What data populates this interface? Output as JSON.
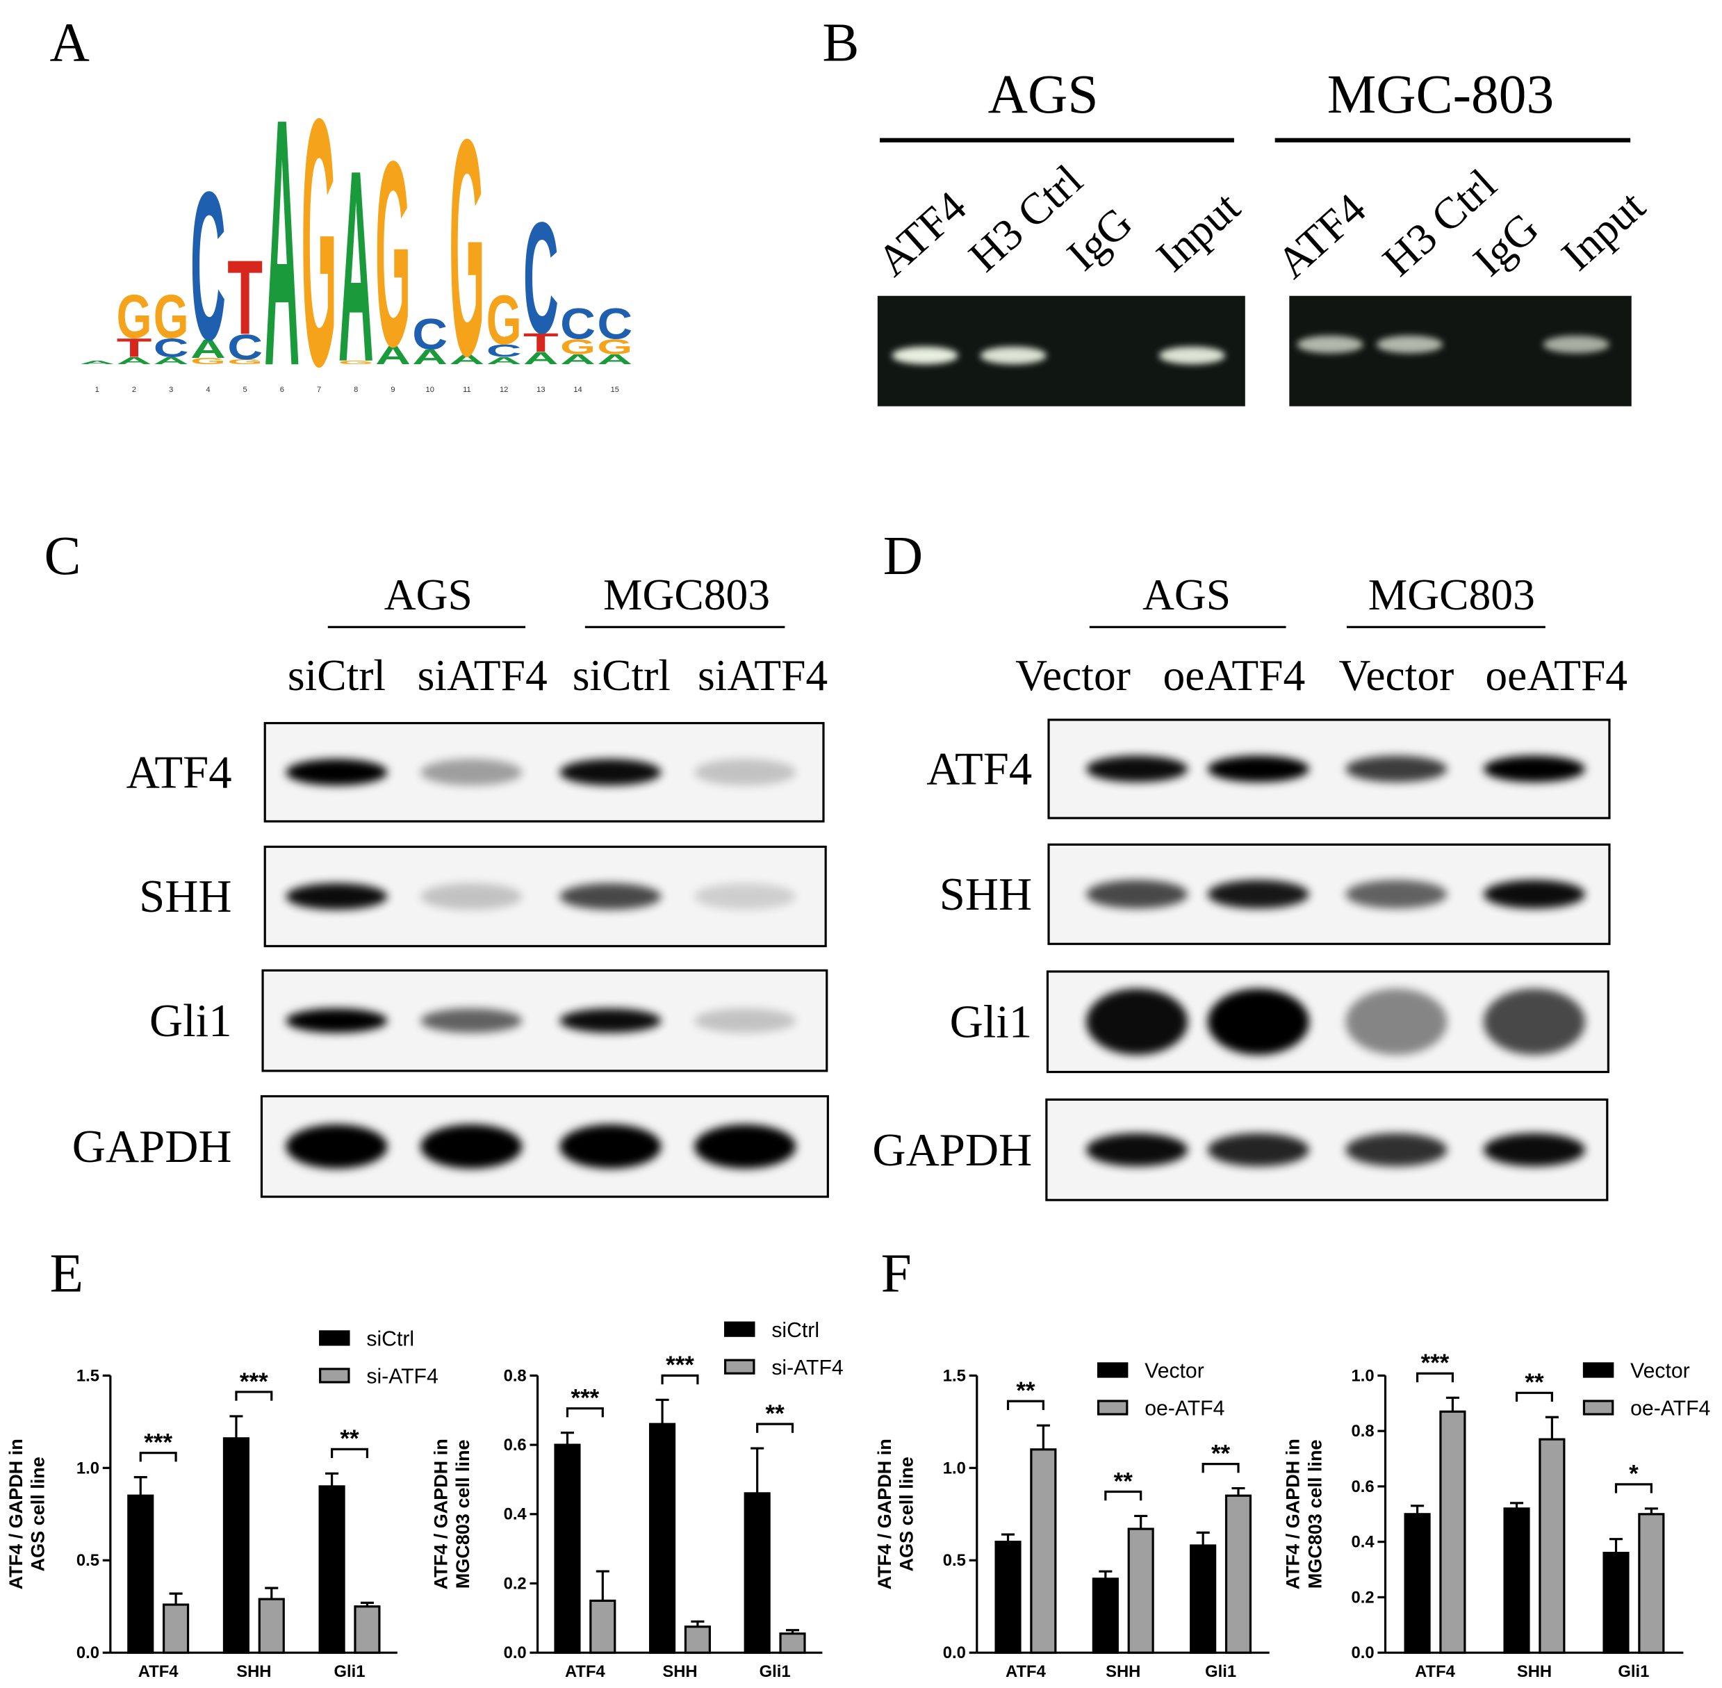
{
  "panel_labels": [
    "A",
    "B",
    "C",
    "D",
    "E",
    "F"
  ],
  "motif": {
    "positions": [
      1,
      2,
      3,
      4,
      5,
      6,
      7,
      8,
      9,
      10,
      11,
      12,
      13,
      14,
      15
    ],
    "stacks": [
      [
        {
          "letter": "A",
          "bits": 0.03
        }
      ],
      [
        {
          "letter": "A",
          "bits": 0.06
        },
        {
          "letter": "T",
          "bits": 0.15
        },
        {
          "letter": "G",
          "bits": 0.35
        }
      ],
      [
        {
          "letter": "A",
          "bits": 0.06
        },
        {
          "letter": "C",
          "bits": 0.15
        },
        {
          "letter": "G",
          "bits": 0.35
        }
      ],
      [
        {
          "letter": "G",
          "bits": 0.05
        },
        {
          "letter": "A",
          "bits": 0.15
        },
        {
          "letter": "C",
          "bits": 1.2
        }
      ],
      [
        {
          "letter": "G",
          "bits": 0.04
        },
        {
          "letter": "C",
          "bits": 0.2
        },
        {
          "letter": "T",
          "bits": 0.6
        }
      ],
      [
        {
          "letter": "A",
          "bits": 2.0
        }
      ],
      [
        {
          "letter": "G",
          "bits": 2.0
        }
      ],
      [
        {
          "letter": "G",
          "bits": 0.03
        },
        {
          "letter": "A",
          "bits": 1.55
        }
      ],
      [
        {
          "letter": "A",
          "bits": 0.15
        },
        {
          "letter": "G",
          "bits": 1.5
        }
      ],
      [
        {
          "letter": "A",
          "bits": 0.12
        },
        {
          "letter": "C",
          "bits": 0.25
        }
      ],
      [
        {
          "letter": "A",
          "bits": 0.08
        },
        {
          "letter": "G",
          "bits": 1.75
        }
      ],
      [
        {
          "letter": "A",
          "bits": 0.06
        },
        {
          "letter": "C",
          "bits": 0.1
        },
        {
          "letter": "G",
          "bits": 0.4
        }
      ],
      [
        {
          "letter": "A",
          "bits": 0.1
        },
        {
          "letter": "T",
          "bits": 0.15
        },
        {
          "letter": "C",
          "bits": 0.9
        }
      ],
      [
        {
          "letter": "A",
          "bits": 0.08
        },
        {
          "letter": "G",
          "bits": 0.12
        },
        {
          "letter": "C",
          "bits": 0.25
        }
      ],
      [
        {
          "letter": "A",
          "bits": 0.08
        },
        {
          "letter": "G",
          "bits": 0.12
        },
        {
          "letter": "C",
          "bits": 0.25
        }
      ]
    ]
  },
  "chip": {
    "groups": [
      {
        "title": "AGS",
        "lanes": [
          "ATF4",
          "H3 Ctrl",
          "IgG",
          "Input"
        ]
      },
      {
        "title": "MGC-803",
        "lanes": [
          "ATF4",
          "H3 Ctrl",
          "IgG",
          "Input"
        ]
      }
    ]
  },
  "western_knockdown": {
    "groups": [
      {
        "title": "AGS",
        "lanes": [
          "siCtrl",
          "siATF4"
        ]
      },
      {
        "title": "MGC803",
        "lanes": [
          "siCtrl",
          "siATF4"
        ]
      }
    ],
    "proteins": [
      "ATF4",
      "SHH",
      "Gli1",
      "GAPDH"
    ]
  },
  "western_overexpression": {
    "groups": [
      {
        "title": "AGS",
        "lanes": [
          "Vector",
          "oeATF4"
        ]
      },
      {
        "title": "MGC803",
        "lanes": [
          "Vector",
          "oeATF4"
        ]
      }
    ],
    "proteins": [
      "ATF4",
      "SHH",
      "Gli1",
      "GAPDH"
    ]
  },
  "chart_data": [
    {
      "type": "bar",
      "ylabel": [
        "ATF4 / GAPDH in",
        "AGS cell line"
      ],
      "categories": [
        "ATF4",
        "SHH",
        "Gli1"
      ],
      "series": [
        {
          "name": "siCtrl",
          "color": "#000000",
          "values": [
            0.85,
            1.16,
            0.9
          ],
          "errors": [
            0.1,
            0.12,
            0.07
          ]
        },
        {
          "name": "si-ATF4",
          "color": "#a0a0a0",
          "values": [
            0.26,
            0.29,
            0.25
          ],
          "errors": [
            0.06,
            0.06,
            0.02
          ]
        }
      ],
      "significance": [
        "***",
        "***",
        "**"
      ],
      "ylim": [
        0,
        1.5
      ],
      "yticks": [
        {
          "value": 0,
          "label": "0.0"
        },
        0.5,
        {
          "value": 1,
          "label": "1.0"
        },
        1.5
      ],
      "legend": "upper right"
    },
    {
      "type": "bar",
      "ylabel": [
        "ATF4 / GAPDH in",
        "MGC803 cell line"
      ],
      "categories": [
        "ATF4",
        "SHH",
        "Gli1"
      ],
      "series": [
        {
          "name": "siCtrl",
          "color": "#000000",
          "values": [
            0.6,
            0.66,
            0.46
          ],
          "errors": [
            0.035,
            0.07,
            0.13
          ]
        },
        {
          "name": "si-ATF4",
          "color": "#a0a0a0",
          "values": [
            0.15,
            0.075,
            0.055
          ],
          "errors": [
            0.085,
            0.015,
            0.01
          ]
        }
      ],
      "significance": [
        "***",
        "***",
        "**"
      ],
      "ylim": [
        0,
        0.8
      ],
      "yticks": [
        {
          "value": 0,
          "label": "0.0"
        },
        0.2,
        0.4,
        0.6,
        0.8
      ],
      "legend": "upper right"
    },
    {
      "type": "bar",
      "ylabel": [
        "ATF4 / GAPDH in",
        "AGS cell line"
      ],
      "categories": [
        "ATF4",
        "SHH",
        "Gli1"
      ],
      "series": [
        {
          "name": "Vector",
          "color": "#000000",
          "values": [
            0.6,
            0.4,
            0.58
          ],
          "errors": [
            0.04,
            0.04,
            0.07
          ]
        },
        {
          "name": "oe-ATF4",
          "color": "#a0a0a0",
          "values": [
            1.1,
            0.67,
            0.85
          ],
          "errors": [
            0.13,
            0.07,
            0.04
          ]
        }
      ],
      "significance": [
        "**",
        "**",
        "**"
      ],
      "ylim": [
        0,
        1.5
      ],
      "yticks": [
        {
          "value": 0,
          "label": "0.0"
        },
        0.5,
        {
          "value": 1,
          "label": "1.0"
        },
        1.5
      ],
      "legend": "upper right"
    },
    {
      "type": "bar",
      "ylabel": [
        "ATF4 / GAPDH in",
        "MGC803 cell line"
      ],
      "categories": [
        "ATF4",
        "SHH",
        "Gli1"
      ],
      "series": [
        {
          "name": "Vector",
          "color": "#000000",
          "values": [
            0.5,
            0.52,
            0.36
          ],
          "errors": [
            0.03,
            0.02,
            0.05
          ]
        },
        {
          "name": "oe-ATF4",
          "color": "#a0a0a0",
          "values": [
            0.87,
            0.77,
            0.5
          ],
          "errors": [
            0.05,
            0.08,
            0.02
          ]
        }
      ],
      "significance": [
        "***",
        "**",
        "*"
      ],
      "ylim": [
        0,
        1
      ],
      "yticks": [
        {
          "value": 0,
          "label": "0.0"
        },
        0.2,
        0.4,
        0.6,
        0.8,
        {
          "value": 1,
          "label": "1.0"
        }
      ],
      "legend": "upper right"
    }
  ]
}
